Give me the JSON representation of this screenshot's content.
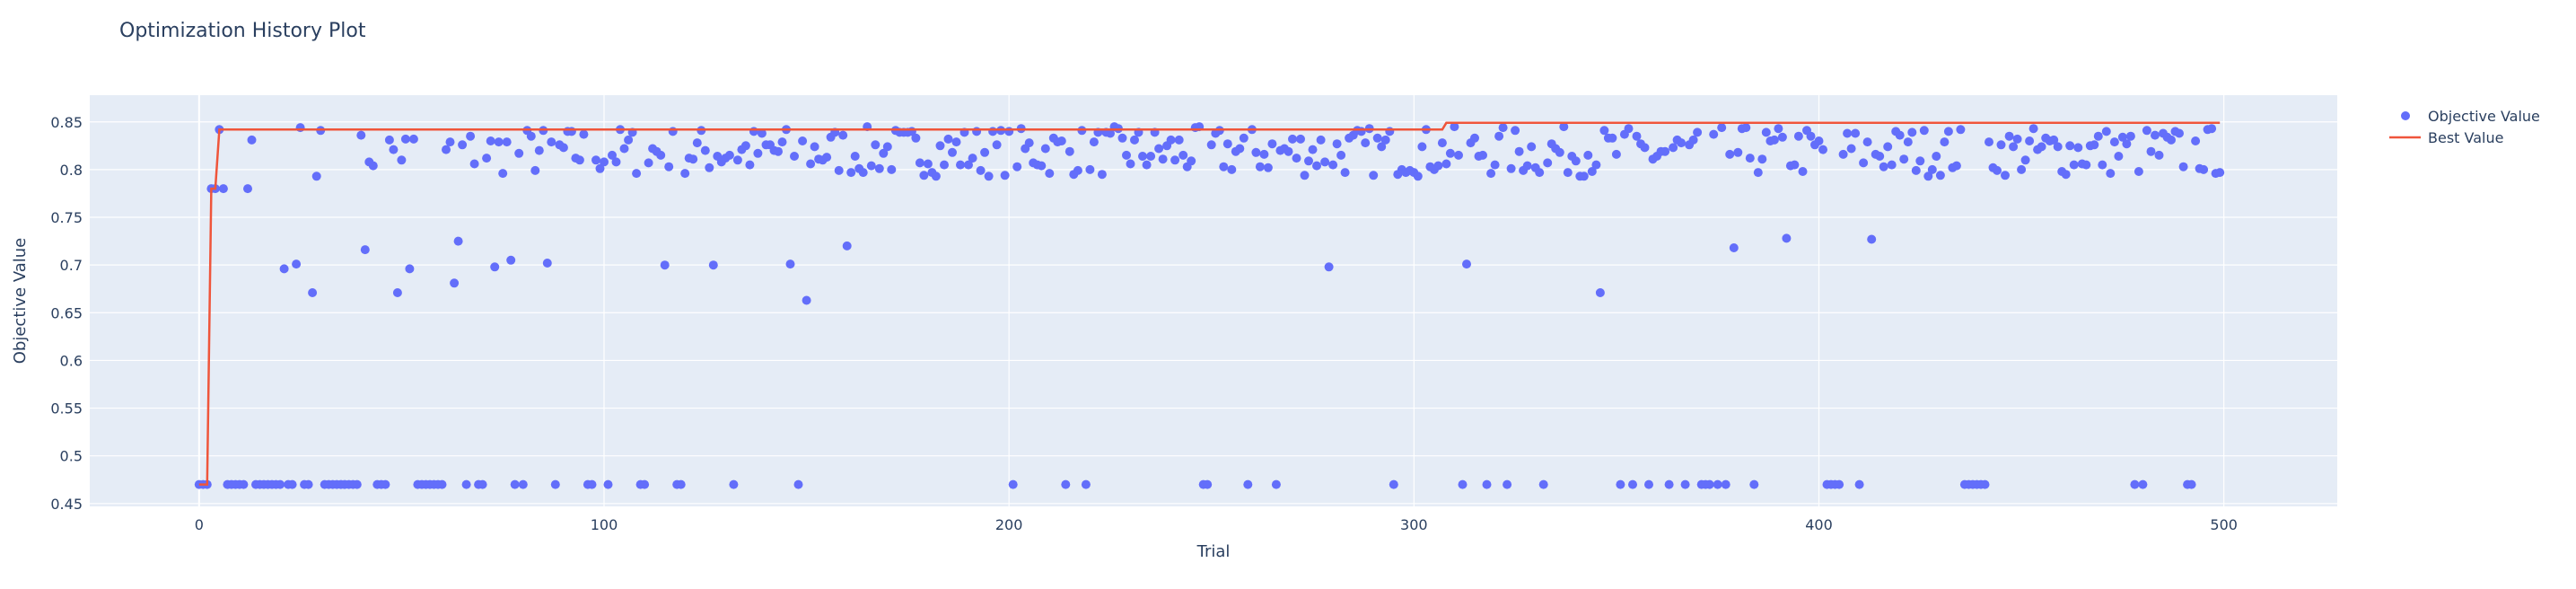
{
  "chart_data": {
    "type": "scatter",
    "title": "Optimization History Plot",
    "xlabel": "Trial",
    "ylabel": "Objective Value",
    "xlim": [
      -27,
      528
    ],
    "ylim": [
      0.447,
      0.878
    ],
    "x_ticks": [
      0,
      100,
      200,
      300,
      400,
      500
    ],
    "y_ticks": [
      0.45,
      0.5,
      0.55,
      0.6,
      0.65,
      0.7,
      0.75,
      0.8,
      0.85
    ],
    "y_tick_labels": [
      "0.45",
      "0.5",
      "0.55",
      "0.6",
      "0.65",
      "0.7",
      "0.75",
      "0.8",
      "0.85"
    ],
    "grid": true,
    "legend_position": "top-right",
    "colors": {
      "plot_bg": "#e5ecf6",
      "grid": "#ffffff",
      "points": "#636efa",
      "best": "#ef553b",
      "text": "#2a3f5f"
    },
    "series": [
      {
        "name": "Objective Value",
        "mode": "markers",
        "low_value": 0.47,
        "low_trials": [
          0,
          1,
          2,
          7,
          8,
          9,
          10,
          11,
          14,
          15,
          16,
          17,
          18,
          19,
          20,
          22,
          23,
          26,
          27,
          31,
          32,
          33,
          34,
          35,
          36,
          37,
          38,
          39,
          44,
          45,
          46,
          54,
          55,
          56,
          57,
          58,
          59,
          60,
          66,
          69,
          70,
          77,
          78,
          80,
          88,
          96,
          97,
          101,
          109,
          110,
          118,
          119,
          132,
          148,
          201,
          214,
          219,
          248,
          249,
          259,
          266,
          295,
          312,
          318,
          323,
          332,
          346,
          351,
          354,
          358,
          363,
          367,
          371,
          372,
          373,
          375,
          377,
          384,
          402,
          403,
          404,
          405,
          410,
          436,
          437,
          438,
          439,
          440,
          441,
          478,
          480,
          491,
          492
        ],
        "mid_points": [
          [
            3,
            0.78
          ],
          [
            4,
            0.78
          ],
          [
            5,
            0.842
          ],
          [
            6,
            0.78
          ],
          [
            12,
            0.78
          ],
          [
            13,
            0.831
          ],
          [
            21,
            0.696
          ],
          [
            24,
            0.701
          ],
          [
            25,
            0.844
          ],
          [
            28,
            0.671
          ],
          [
            40,
            0.836
          ],
          [
            41,
            0.716
          ],
          [
            49,
            0.671
          ],
          [
            52,
            0.696
          ],
          [
            63,
            0.681
          ],
          [
            64,
            0.725
          ],
          [
            73,
            0.698
          ],
          [
            77,
            0.705
          ],
          [
            86,
            0.702
          ],
          [
            115,
            0.7
          ],
          [
            127,
            0.7
          ],
          [
            146,
            0.701
          ],
          [
            150,
            0.663
          ],
          [
            160,
            0.72
          ],
          [
            279,
            0.698
          ],
          [
            313,
            0.701
          ],
          [
            346,
            0.671
          ],
          [
            379,
            0.718
          ],
          [
            392,
            0.728
          ],
          [
            413,
            0.727
          ]
        ],
        "upper_seed": 7,
        "upper_from": 29,
        "upper_to": 499,
        "upper_range": [
          0.765,
          0.845
        ]
      },
      {
        "name": "Best Value",
        "mode": "lines",
        "steps": [
          [
            0,
            0.47
          ],
          [
            2,
            0.47
          ],
          [
            3,
            0.78
          ],
          [
            4,
            0.78
          ],
          [
            5,
            0.842
          ],
          [
            307,
            0.842
          ],
          [
            308,
            0.849
          ],
          [
            499,
            0.849
          ]
        ]
      }
    ]
  }
}
